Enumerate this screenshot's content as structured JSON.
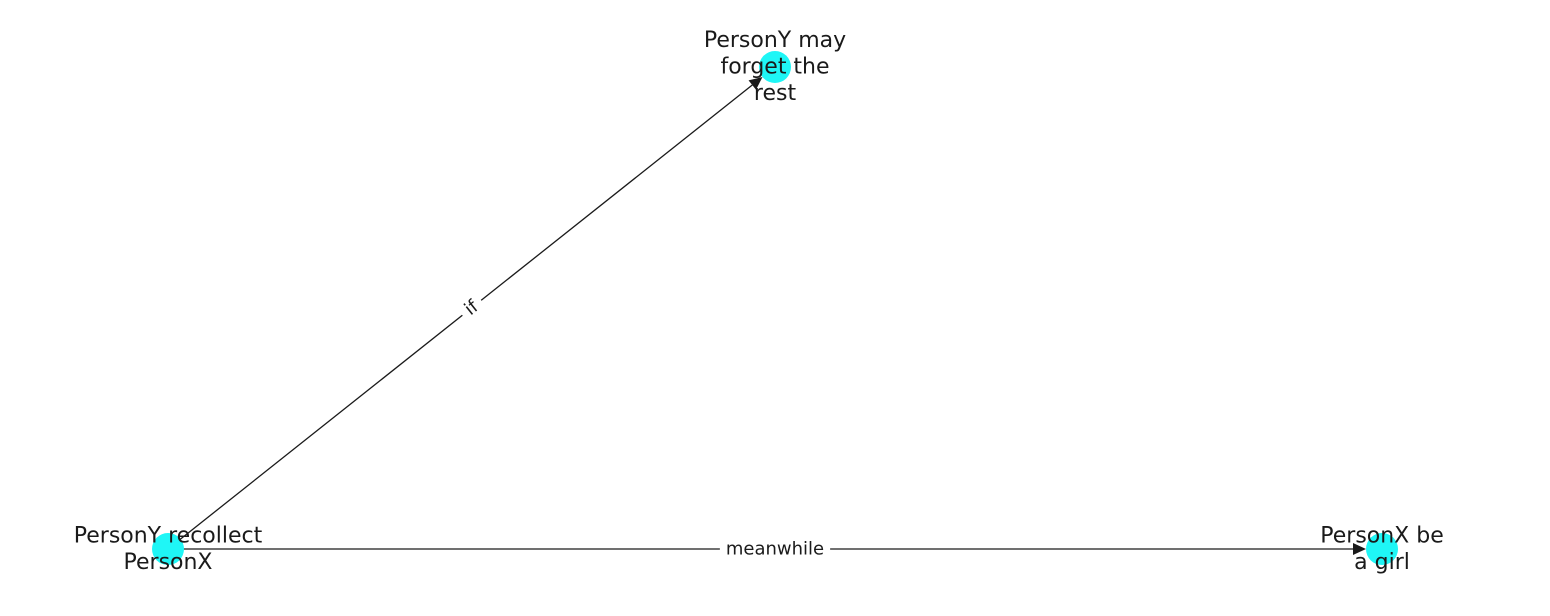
{
  "colors": {
    "node": "#1ff6f6",
    "edge": "#1a1a1a",
    "background": "#ffffff"
  },
  "nodes": [
    {
      "id": "recollect",
      "lines": [
        "PersonY recollect",
        "PersonX"
      ]
    },
    {
      "id": "forget",
      "lines": [
        "PersonY may",
        "forget the",
        "rest"
      ]
    },
    {
      "id": "girl",
      "lines": [
        "PersonX be",
        "a girl"
      ]
    }
  ],
  "edges": [
    {
      "source": "recollect",
      "target": "forget",
      "label": "if"
    },
    {
      "source": "recollect",
      "target": "girl",
      "label": "meanwhile"
    }
  ]
}
